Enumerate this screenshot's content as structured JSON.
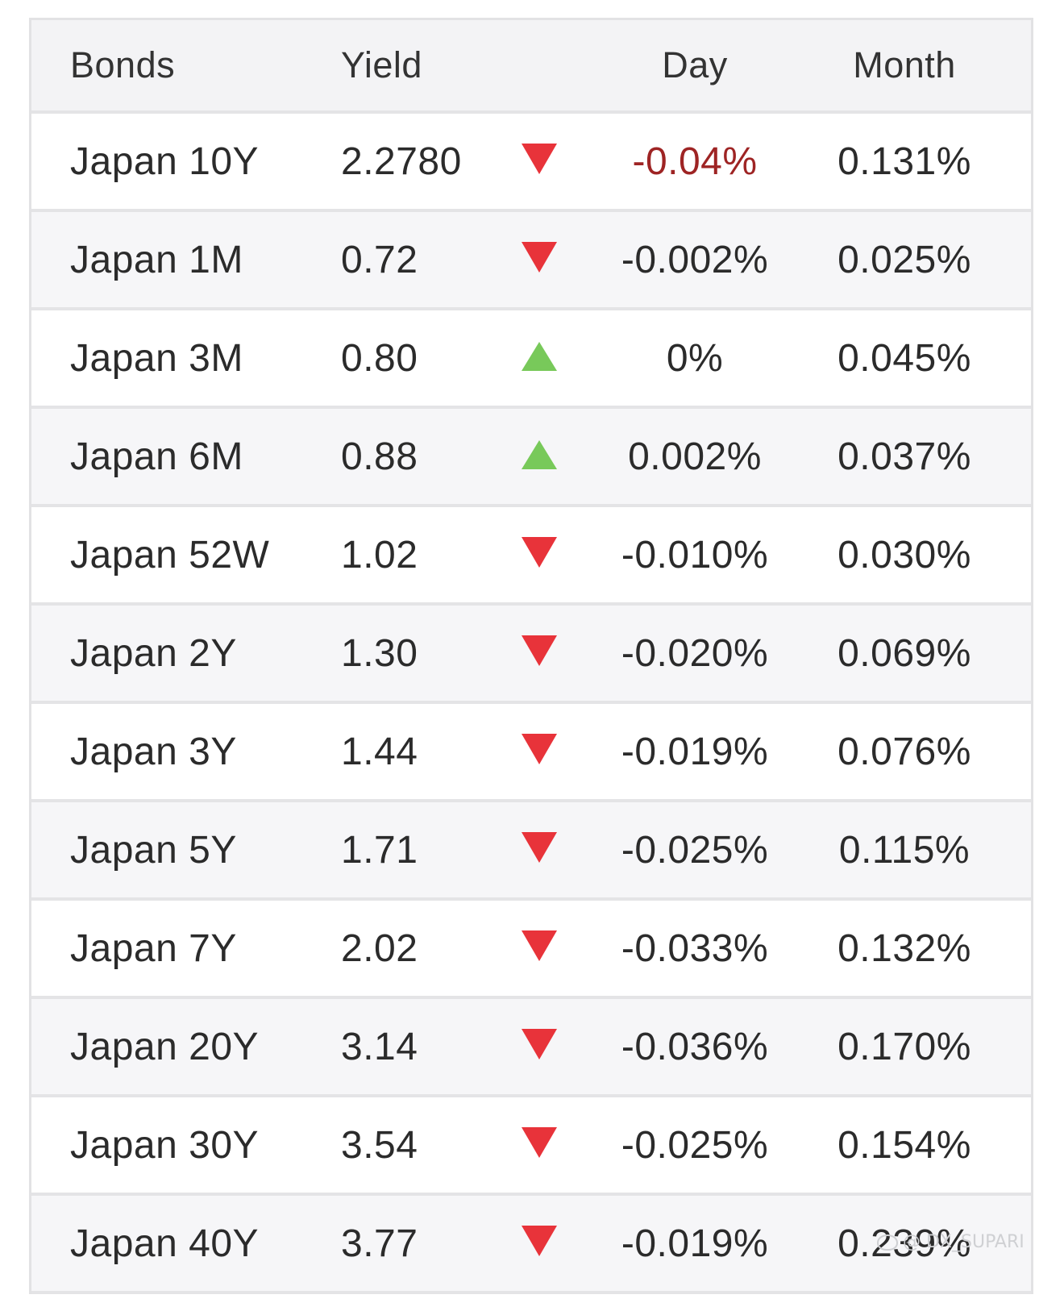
{
  "header": {
    "bonds": "Bonds",
    "yield": "Yield",
    "day": "Day",
    "month": "Month"
  },
  "colors": {
    "down_arrow": "#e8333a",
    "up_arrow": "#78c95a",
    "highlight_negative": "#9e2424"
  },
  "rows": [
    {
      "name": "Japan 10Y",
      "yield": "2.2780",
      "direction": "down",
      "day": "-0.04%",
      "month": "0.131%"
    },
    {
      "name": "Japan 1M",
      "yield": "0.72",
      "direction": "down",
      "day": "-0.002%",
      "month": "0.025%"
    },
    {
      "name": "Japan 3M",
      "yield": "0.80",
      "direction": "up",
      "day": "0%",
      "month": "0.045%"
    },
    {
      "name": "Japan 6M",
      "yield": "0.88",
      "direction": "up",
      "day": "0.002%",
      "month": "0.037%"
    },
    {
      "name": "Japan 52W",
      "yield": "1.02",
      "direction": "down",
      "day": "-0.010%",
      "month": "0.030%"
    },
    {
      "name": "Japan 2Y",
      "yield": "1.30",
      "direction": "down",
      "day": "-0.020%",
      "month": "0.069%"
    },
    {
      "name": "Japan 3Y",
      "yield": "1.44",
      "direction": "down",
      "day": "-0.019%",
      "month": "0.076%"
    },
    {
      "name": "Japan 5Y",
      "yield": "1.71",
      "direction": "down",
      "day": "-0.025%",
      "month": "0.115%"
    },
    {
      "name": "Japan 7Y",
      "yield": "2.02",
      "direction": "down",
      "day": "-0.033%",
      "month": "0.132%"
    },
    {
      "name": "Japan 20Y",
      "yield": "3.14",
      "direction": "down",
      "day": "-0.036%",
      "month": "0.170%"
    },
    {
      "name": "Japan 30Y",
      "yield": "3.54",
      "direction": "down",
      "day": "-0.025%",
      "month": "0.154%"
    },
    {
      "name": "Japan 40Y",
      "yield": "3.77",
      "direction": "down",
      "day": "-0.019%",
      "month": "0.239%"
    }
  ],
  "watermark": "@ DX_SUPARI"
}
